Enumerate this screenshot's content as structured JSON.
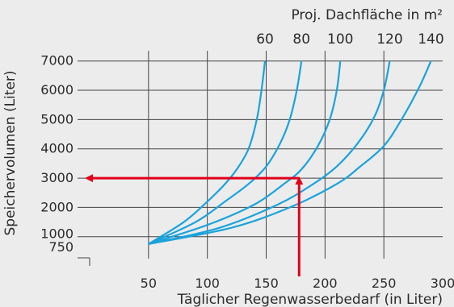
{
  "chart_data": {
    "type": "line",
    "title": "",
    "xlabel": "Täglicher Regenwasserbedarf (in Liter)",
    "ylabel": "Speichervolumen (Liter)",
    "top_axis_label": "Proj. Dachfläche in m²",
    "xlim": [
      0,
      300
    ],
    "ylim": [
      250,
      7350
    ],
    "x_ticks": [
      50,
      100,
      150,
      200,
      250,
      300
    ],
    "y_ticks": [
      750,
      1000,
      2000,
      3000,
      4000,
      5000,
      6000,
      7000
    ],
    "grid": true,
    "series": [
      {
        "name": "60",
        "x": [
          50,
          80,
          100,
          115,
          125,
          135,
          142,
          146,
          149
        ],
        "y": [
          750,
          1500,
          2200,
          2800,
          3300,
          4000,
          5000,
          6000,
          7000
        ]
      },
      {
        "name": "80",
        "x": [
          50,
          90,
          115,
          135,
          150,
          162,
          170,
          176,
          180
        ],
        "y": [
          750,
          1500,
          2200,
          2800,
          3400,
          4200,
          5000,
          6000,
          7000
        ]
      },
      {
        "name": "100",
        "x": [
          50,
          100,
          140,
          165,
          180,
          194,
          204,
          210,
          213
        ],
        "y": [
          750,
          1400,
          2100,
          2800,
          3300,
          4100,
          5000,
          6000,
          7000
        ]
      },
      {
        "name": "120",
        "x": [
          50,
          110,
          160,
          190,
          210,
          228,
          242,
          250,
          255
        ],
        "y": [
          750,
          1300,
          2100,
          2800,
          3400,
          4200,
          5100,
          6000,
          7000
        ]
      },
      {
        "name": "140",
        "x": [
          50,
          120,
          170,
          210,
          230,
          250,
          265,
          280,
          290
        ],
        "y": [
          750,
          1300,
          2000,
          2800,
          3400,
          4100,
          5000,
          6100,
          7000
        ]
      }
    ],
    "annotation_arrows": [
      {
        "from_x": 178,
        "from_y": 250,
        "to_x": 178,
        "to_y": 3000
      },
      {
        "from_x": 178,
        "from_y": 3000,
        "to_x": 0,
        "to_y": 3000
      }
    ],
    "colors": {
      "series": "#1aa3db",
      "arrow": "#e2001a",
      "grid": "#444444",
      "background": "#ececec"
    }
  }
}
